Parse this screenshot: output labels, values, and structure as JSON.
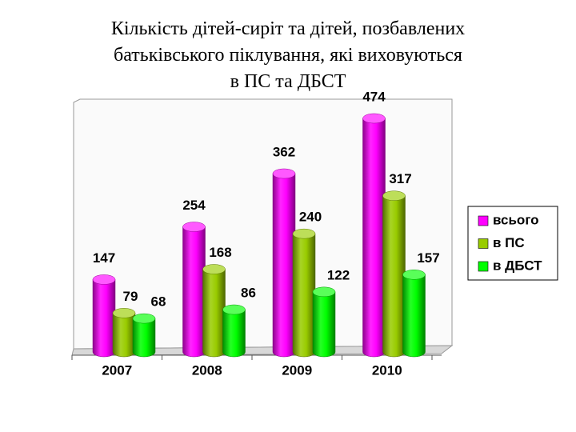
{
  "chart_data": {
    "type": "bar3d",
    "title": "Кількість дітей-сиріт та дітей, позбавлених\nбатьківського піклування, які виховуються\nв ПС та ДБСТ",
    "categories": [
      "2007",
      "2008",
      "2009",
      "2010"
    ],
    "series": [
      {
        "name": "всього",
        "color": "#ff00ff",
        "values": [
          147,
          254,
          362,
          474
        ]
      },
      {
        "name": "в ПС",
        "color": "#99cc00",
        "values": [
          79,
          168,
          240,
          317
        ]
      },
      {
        "name": "в ДБСТ",
        "color": "#00ff00",
        "values": [
          68,
          86,
          122,
          157
        ]
      }
    ],
    "legend": "right"
  }
}
